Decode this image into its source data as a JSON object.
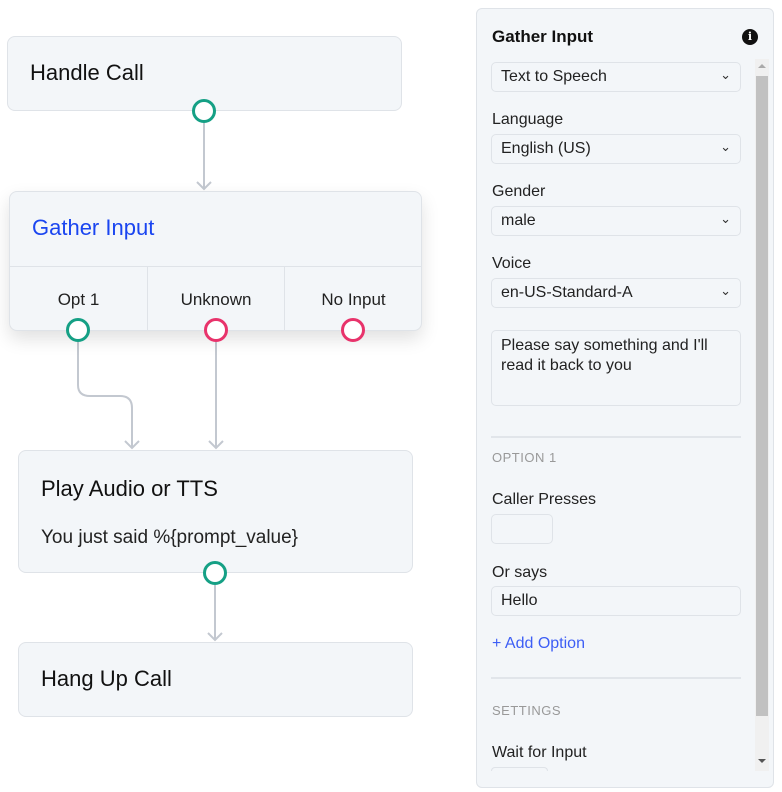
{
  "canvas": {
    "handle_call": {
      "title": "Handle Call"
    },
    "gather_input": {
      "title": "Gather Input",
      "outputs": [
        "Opt 1",
        "Unknown",
        "No Input"
      ]
    },
    "play_audio": {
      "title": "Play Audio or TTS",
      "text": "You just said %{prompt_value}"
    },
    "hang_up": {
      "title": "Hang Up Call"
    }
  },
  "panel": {
    "title": "Gather Input",
    "info_icon": "info-circle-icon",
    "mode": "Text to Speech",
    "language_label": "Language",
    "language": "English (US)",
    "gender_label": "Gender",
    "gender": "male",
    "voice_label": "Voice",
    "voice": "en-US-Standard-A",
    "prompt": "Please say something and I'll read it back to you",
    "option_heading": "OPTION 1",
    "caller_presses_label": "Caller Presses",
    "caller_presses": "",
    "or_says_label": "Or says",
    "or_says": "Hello",
    "add_option": "+ Add Option",
    "settings_heading": "SETTINGS",
    "wait_label": "Wait for Input"
  },
  "colors": {
    "accent": "#1a45f0",
    "success_port": "#15a085",
    "error_port": "#e8336b"
  }
}
